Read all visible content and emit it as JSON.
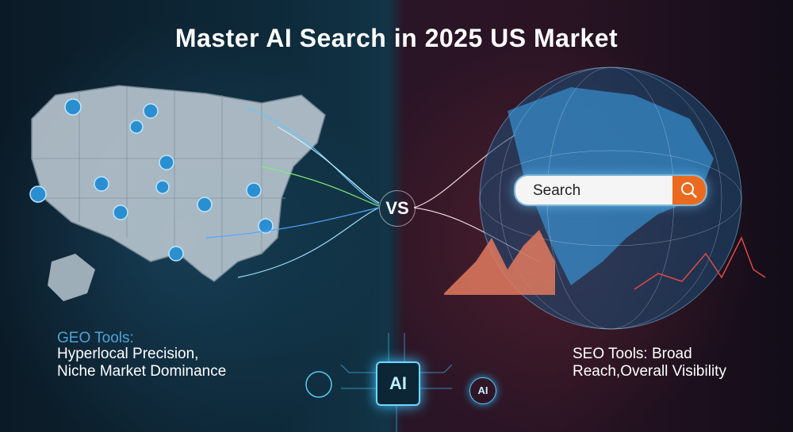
{
  "title": "Master AI Search in 2025 US Market",
  "vs_label": "VS",
  "search": {
    "text": "Search",
    "icon": "search-icon",
    "button_color": "#ec6a1f"
  },
  "left": {
    "heading": "GEO Tools:",
    "line1": "Hyperlocal Precision,",
    "line2": "Niche Market Dominance",
    "accent": "#4fa3d8"
  },
  "right": {
    "line1": "SEO Tools: Broad",
    "line2": "Reach,Overall Visibility"
  },
  "chip": {
    "label": "AI",
    "small_label": "AI"
  },
  "icons": [
    "map-pin-icon",
    "search-icon",
    "globe-icon",
    "ai-chip-icon",
    "robot-face-icon"
  ]
}
